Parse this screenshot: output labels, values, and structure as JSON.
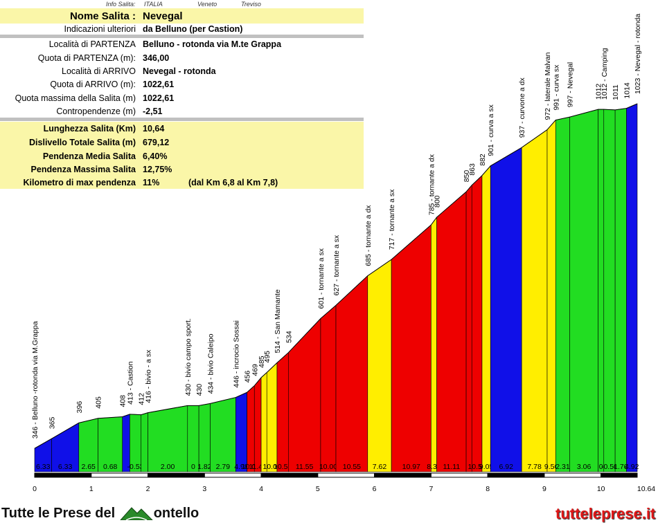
{
  "info_header": {
    "label": "Info Salita:",
    "country": "ITALIA",
    "region": "Veneto",
    "province": "Treviso"
  },
  "info": [
    {
      "label": "Nome Salita :",
      "value": "Nevegal",
      "style": "big"
    },
    {
      "label": "Indicazioni ulteriori",
      "value": "da Belluno (per Castion)"
    },
    {
      "label": "Località di PARTENZA",
      "value": "Belluno - rotonda via M.te Grappa"
    },
    {
      "label": "Quota di PARTENZA (m):",
      "value": "346,00"
    },
    {
      "label": "Località di ARRIVO",
      "value": "Nevegal - rotonda"
    },
    {
      "label": "Quota di ARRIVO (m):",
      "value": "1022,61"
    },
    {
      "label": "Quota massima della Salita (m)",
      "value": "1022,61"
    },
    {
      "label": "Contropendenze (m)",
      "value": "-2,51"
    },
    {
      "label": "Lunghezza Salita (Km)",
      "value": "10,64",
      "style": "hl"
    },
    {
      "label": "Dislivello Totale Salita (m)",
      "value": "679,12",
      "style": "hl"
    },
    {
      "label": "Pendenza Media Salita",
      "value": "6,40%",
      "style": "hl"
    },
    {
      "label": "Pendenza Massima Salita",
      "value": "12,75%",
      "style": "hl"
    },
    {
      "label": "Kilometro di max pendenza",
      "value": "11%",
      "extra": "(dal Km 6,8 al Km 7,8)",
      "style": "hl"
    }
  ],
  "branding": {
    "left_text_1": "Tutte le Prese del",
    "left_text_2": "ontello",
    "right_text": "tutteleprese.it"
  },
  "colors": {
    "blue": "#1010e8",
    "green": "#22dd22",
    "yellow": "#ffee00",
    "red": "#ee0000"
  },
  "chart_data": {
    "type": "area",
    "xlabel": "",
    "ylabel": "",
    "xlim": [
      0,
      10.64
    ],
    "ylim": [
      300,
      1100
    ],
    "x_ticks": [
      "0",
      "1",
      "2",
      "3",
      "4",
      "5",
      "6",
      "7",
      "8",
      "9",
      "10",
      "10.64"
    ],
    "segments": [
      {
        "x0": 0.0,
        "x1": 0.3,
        "y0": 346,
        "y1": 365,
        "grade": "6.33",
        "color": "blue"
      },
      {
        "x0": 0.3,
        "x1": 0.78,
        "y0": 365,
        "y1": 396,
        "grade": "6.33",
        "color": "blue"
      },
      {
        "x0": 0.78,
        "x1": 1.12,
        "y0": 396,
        "y1": 405,
        "grade": "2.65",
        "color": "green"
      },
      {
        "x0": 1.12,
        "x1": 1.55,
        "y0": 405,
        "y1": 408,
        "grade": "0.68",
        "color": "green"
      },
      {
        "x0": 1.55,
        "x1": 1.68,
        "y0": 408,
        "y1": 413,
        "grade": "",
        "color": "blue"
      },
      {
        "x0": 1.68,
        "x1": 1.88,
        "y0": 413,
        "y1": 412,
        "grade": "-0.53",
        "color": "green"
      },
      {
        "x0": 1.88,
        "x1": 2.0,
        "y0": 412,
        "y1": 416,
        "grade": "",
        "color": "green"
      },
      {
        "x0": 2.0,
        "x1": 2.7,
        "y0": 416,
        "y1": 430,
        "grade": "2.00",
        "color": "green"
      },
      {
        "x0": 2.7,
        "x1": 2.9,
        "y0": 430,
        "y1": 430,
        "grade": "0",
        "color": "green"
      },
      {
        "x0": 2.9,
        "x1": 3.1,
        "y0": 430,
        "y1": 434,
        "grade": "1.82",
        "color": "green"
      },
      {
        "x0": 3.1,
        "x1": 3.55,
        "y0": 434,
        "y1": 446,
        "grade": "2.79",
        "color": "green"
      },
      {
        "x0": 3.55,
        "x1": 3.75,
        "y0": 446,
        "y1": 456,
        "grade": "4.98",
        "color": "blue"
      },
      {
        "x0": 3.75,
        "x1": 3.88,
        "y0": 456,
        "y1": 469,
        "grade": "10.00",
        "color": "red"
      },
      {
        "x0": 3.88,
        "x1": 4.0,
        "y0": 469,
        "y1": 485,
        "grade": "11.43",
        "color": "red"
      },
      {
        "x0": 4.0,
        "x1": 4.1,
        "y0": 485,
        "y1": 495,
        "grade": "",
        "color": "yellow"
      },
      {
        "x0": 4.1,
        "x1": 4.28,
        "y0": 495,
        "y1": 514,
        "grade": "10.00",
        "color": "yellow"
      },
      {
        "x0": 4.28,
        "x1": 4.48,
        "y0": 514,
        "y1": 534,
        "grade": "10.53",
        "color": "red"
      },
      {
        "x0": 4.48,
        "x1": 5.05,
        "y0": 534,
        "y1": 601,
        "grade": "11.55",
        "color": "red"
      },
      {
        "x0": 5.05,
        "x1": 5.32,
        "y0": 601,
        "y1": 627,
        "grade": "10.00",
        "color": "red"
      },
      {
        "x0": 5.32,
        "x1": 5.88,
        "y0": 627,
        "y1": 685,
        "grade": "10.55",
        "color": "red"
      },
      {
        "x0": 5.88,
        "x1": 6.3,
        "y0": 685,
        "y1": 717,
        "grade": "7.62",
        "color": "yellow"
      },
      {
        "x0": 6.3,
        "x1": 7.0,
        "y0": 717,
        "y1": 785,
        "grade": "10.97",
        "color": "red"
      },
      {
        "x0": 7.0,
        "x1": 7.1,
        "y0": 785,
        "y1": 800,
        "grade": "8.33",
        "color": "yellow"
      },
      {
        "x0": 7.1,
        "x1": 7.62,
        "y0": 800,
        "y1": 850,
        "grade": "11.11",
        "color": "red"
      },
      {
        "x0": 7.62,
        "x1": 7.72,
        "y0": 850,
        "y1": 863,
        "grade": "",
        "color": "red"
      },
      {
        "x0": 7.72,
        "x1": 7.9,
        "y0": 863,
        "y1": 882,
        "grade": "10.56",
        "color": "red"
      },
      {
        "x0": 7.9,
        "x1": 8.05,
        "y0": 882,
        "y1": 901,
        "grade": "9.05",
        "color": "yellow"
      },
      {
        "x0": 8.05,
        "x1": 8.6,
        "y0": 901,
        "y1": 937,
        "grade": "6.92",
        "color": "blue"
      },
      {
        "x0": 8.6,
        "x1": 9.05,
        "y0": 937,
        "y1": 972,
        "grade": "7.78",
        "color": "yellow"
      },
      {
        "x0": 9.05,
        "x1": 9.2,
        "y0": 972,
        "y1": 991,
        "grade": "9.50",
        "color": "yellow"
      },
      {
        "x0": 9.2,
        "x1": 9.45,
        "y0": 991,
        "y1": 997,
        "grade": "2.31",
        "color": "green"
      },
      {
        "x0": 9.45,
        "x1": 9.95,
        "y0": 997,
        "y1": 1012,
        "grade": "3.06",
        "color": "green"
      },
      {
        "x0": 9.95,
        "x1": 10.05,
        "y0": 1012,
        "y1": 1012,
        "grade": "0",
        "color": "green"
      },
      {
        "x0": 10.05,
        "x1": 10.25,
        "y0": 1012,
        "y1": 1011,
        "grade": "-0.50",
        "color": "green"
      },
      {
        "x0": 10.25,
        "x1": 10.45,
        "y0": 1011,
        "y1": 1014,
        "grade": "1.76",
        "color": "green"
      },
      {
        "x0": 10.45,
        "x1": 10.64,
        "y0": 1014,
        "y1": 1023,
        "grade": "4.92",
        "color": "blue"
      }
    ],
    "points": [
      {
        "x": 0.0,
        "label": "346 - Belluno -rotonda via M.Grappa"
      },
      {
        "x": 0.3,
        "label": "365"
      },
      {
        "x": 0.78,
        "label": "396"
      },
      {
        "x": 1.12,
        "label": "405"
      },
      {
        "x": 1.55,
        "label": "408"
      },
      {
        "x": 1.68,
        "label": "413 - Castion"
      },
      {
        "x": 1.88,
        "label": "412"
      },
      {
        "x": 2.0,
        "label": "416 - bivio - a sx"
      },
      {
        "x": 2.7,
        "label": "430 - bivio campo sport."
      },
      {
        "x": 2.9,
        "label": "430"
      },
      {
        "x": 3.1,
        "label": "434 - bivio Caleipo"
      },
      {
        "x": 3.55,
        "label": "446 - incrocio Sossai"
      },
      {
        "x": 3.75,
        "label": "456"
      },
      {
        "x": 3.88,
        "label": "469"
      },
      {
        "x": 4.0,
        "label": "485"
      },
      {
        "x": 4.1,
        "label": "495"
      },
      {
        "x": 4.28,
        "label": "514 - San Mamante"
      },
      {
        "x": 4.48,
        "label": "534"
      },
      {
        "x": 5.05,
        "label": "601 - tornante a sx"
      },
      {
        "x": 5.32,
        "label": "627 - tornante a sx"
      },
      {
        "x": 5.88,
        "label": "685 - tornante a dx"
      },
      {
        "x": 6.3,
        "label": "717 - tornante a sx"
      },
      {
        "x": 7.0,
        "label": "785 - tornante a dx"
      },
      {
        "x": 7.1,
        "label": "800"
      },
      {
        "x": 7.62,
        "label": "850"
      },
      {
        "x": 7.72,
        "label": "863"
      },
      {
        "x": 7.9,
        "label": "882"
      },
      {
        "x": 8.05,
        "label": "901 - curva a sx"
      },
      {
        "x": 8.6,
        "label": "937 - curvone a dx"
      },
      {
        "x": 9.05,
        "label": "972 - laterale Malvan"
      },
      {
        "x": 9.2,
        "label": "991 - curva sx"
      },
      {
        "x": 9.45,
        "label": "997 - Nevegal"
      },
      {
        "x": 9.95,
        "label": "1012"
      },
      {
        "x": 10.05,
        "label": "1012 - Camping"
      },
      {
        "x": 10.25,
        "label": "1011"
      },
      {
        "x": 10.45,
        "label": "1014"
      },
      {
        "x": 10.64,
        "label": "1023 - Nevegal - rotonda"
      }
    ]
  }
}
